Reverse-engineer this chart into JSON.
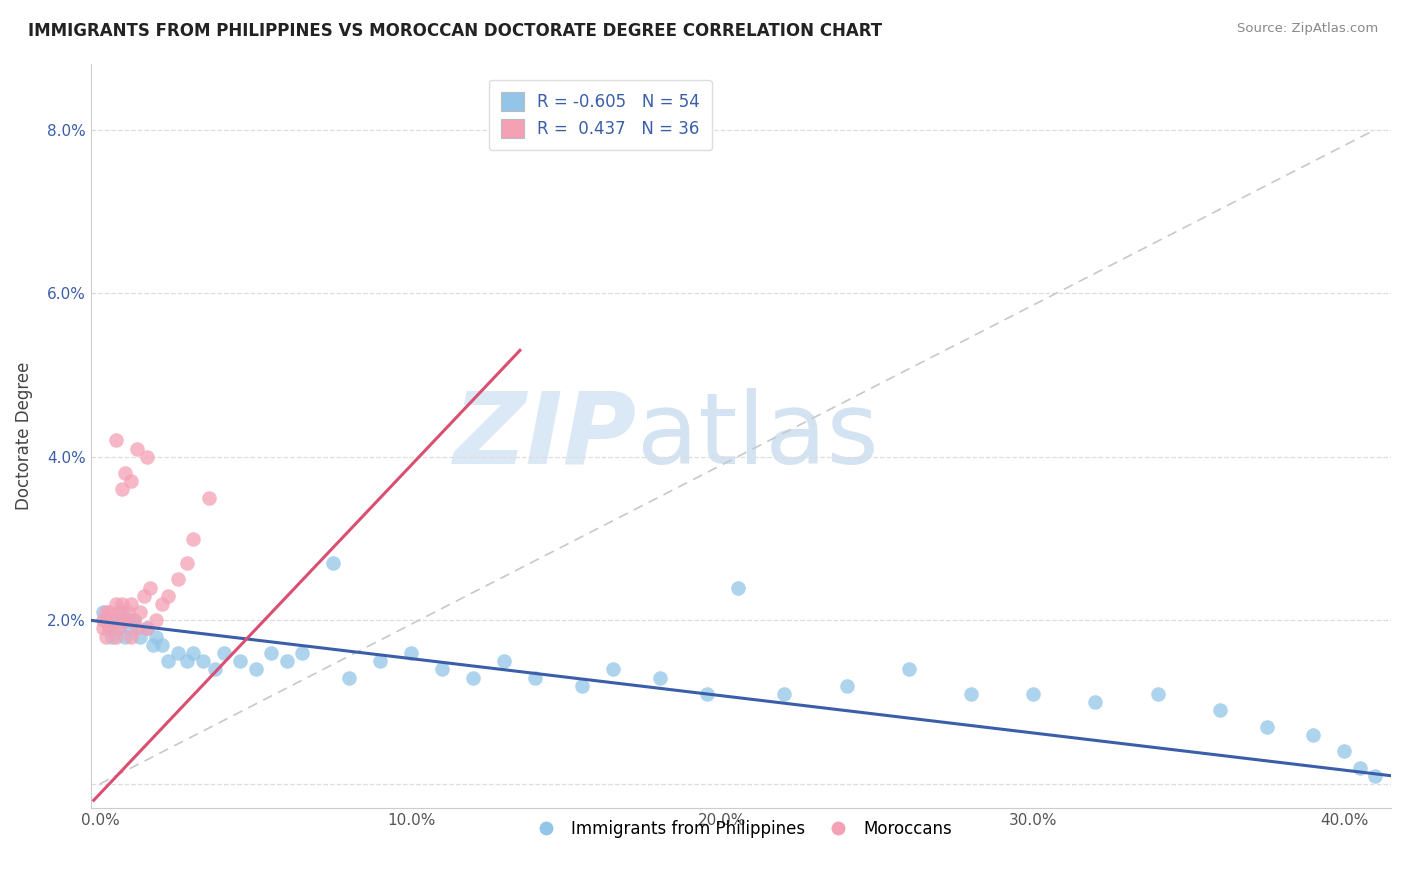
{
  "title": "IMMIGRANTS FROM PHILIPPINES VS MOROCCAN DOCTORATE DEGREE CORRELATION CHART",
  "source": "Source: ZipAtlas.com",
  "ylabel_label": "Doctorate Degree",
  "x_ticks": [
    0.0,
    0.1,
    0.2,
    0.3,
    0.4
  ],
  "y_ticks": [
    0.0,
    0.02,
    0.04,
    0.06,
    0.08
  ],
  "xlim": [
    -0.003,
    0.415
  ],
  "ylim": [
    -0.003,
    0.088
  ],
  "blue_color": "#92C5E8",
  "pink_color": "#F4A0B5",
  "blue_line_color": "#3A5FA8",
  "pink_line_color": "#D94F72",
  "diag_line_color": "#C8C8C8",
  "watermark_zip": "ZIP",
  "watermark_atlas": "atlas",
  "legend_R_blue": "-0.605",
  "legend_N_blue": "54",
  "legend_R_pink": "0.437",
  "legend_N_pink": "36",
  "blue_scatter_x": [
    0.001,
    0.002,
    0.003,
    0.004,
    0.005,
    0.006,
    0.007,
    0.008,
    0.009,
    0.01,
    0.011,
    0.013,
    0.015,
    0.017,
    0.018,
    0.02,
    0.022,
    0.025,
    0.028,
    0.03,
    0.033,
    0.037,
    0.04,
    0.045,
    0.05,
    0.055,
    0.06,
    0.065,
    0.075,
    0.08,
    0.09,
    0.1,
    0.11,
    0.12,
    0.13,
    0.14,
    0.155,
    0.165,
    0.18,
    0.195,
    0.205,
    0.22,
    0.24,
    0.26,
    0.28,
    0.3,
    0.32,
    0.34,
    0.36,
    0.375,
    0.39,
    0.4,
    0.405,
    0.41
  ],
  "blue_scatter_y": [
    0.021,
    0.02,
    0.019,
    0.018,
    0.02,
    0.019,
    0.021,
    0.018,
    0.02,
    0.019,
    0.02,
    0.018,
    0.019,
    0.017,
    0.018,
    0.017,
    0.015,
    0.016,
    0.015,
    0.016,
    0.015,
    0.014,
    0.016,
    0.015,
    0.014,
    0.016,
    0.015,
    0.016,
    0.027,
    0.013,
    0.015,
    0.016,
    0.014,
    0.013,
    0.015,
    0.013,
    0.012,
    0.014,
    0.013,
    0.011,
    0.024,
    0.011,
    0.012,
    0.014,
    0.011,
    0.011,
    0.01,
    0.011,
    0.009,
    0.007,
    0.006,
    0.004,
    0.002,
    0.001
  ],
  "pink_scatter_x": [
    0.001,
    0.001,
    0.002,
    0.002,
    0.003,
    0.003,
    0.004,
    0.005,
    0.005,
    0.006,
    0.006,
    0.007,
    0.007,
    0.008,
    0.009,
    0.01,
    0.01,
    0.011,
    0.012,
    0.013,
    0.014,
    0.015,
    0.016,
    0.018,
    0.02,
    0.022,
    0.025,
    0.028,
    0.03,
    0.035,
    0.008,
    0.01,
    0.005,
    0.012,
    0.007,
    0.015
  ],
  "pink_scatter_y": [
    0.019,
    0.02,
    0.018,
    0.021,
    0.019,
    0.021,
    0.02,
    0.018,
    0.022,
    0.019,
    0.021,
    0.02,
    0.022,
    0.02,
    0.021,
    0.018,
    0.022,
    0.02,
    0.019,
    0.021,
    0.023,
    0.019,
    0.024,
    0.02,
    0.022,
    0.023,
    0.025,
    0.027,
    0.03,
    0.035,
    0.038,
    0.037,
    0.042,
    0.041,
    0.036,
    0.04
  ]
}
